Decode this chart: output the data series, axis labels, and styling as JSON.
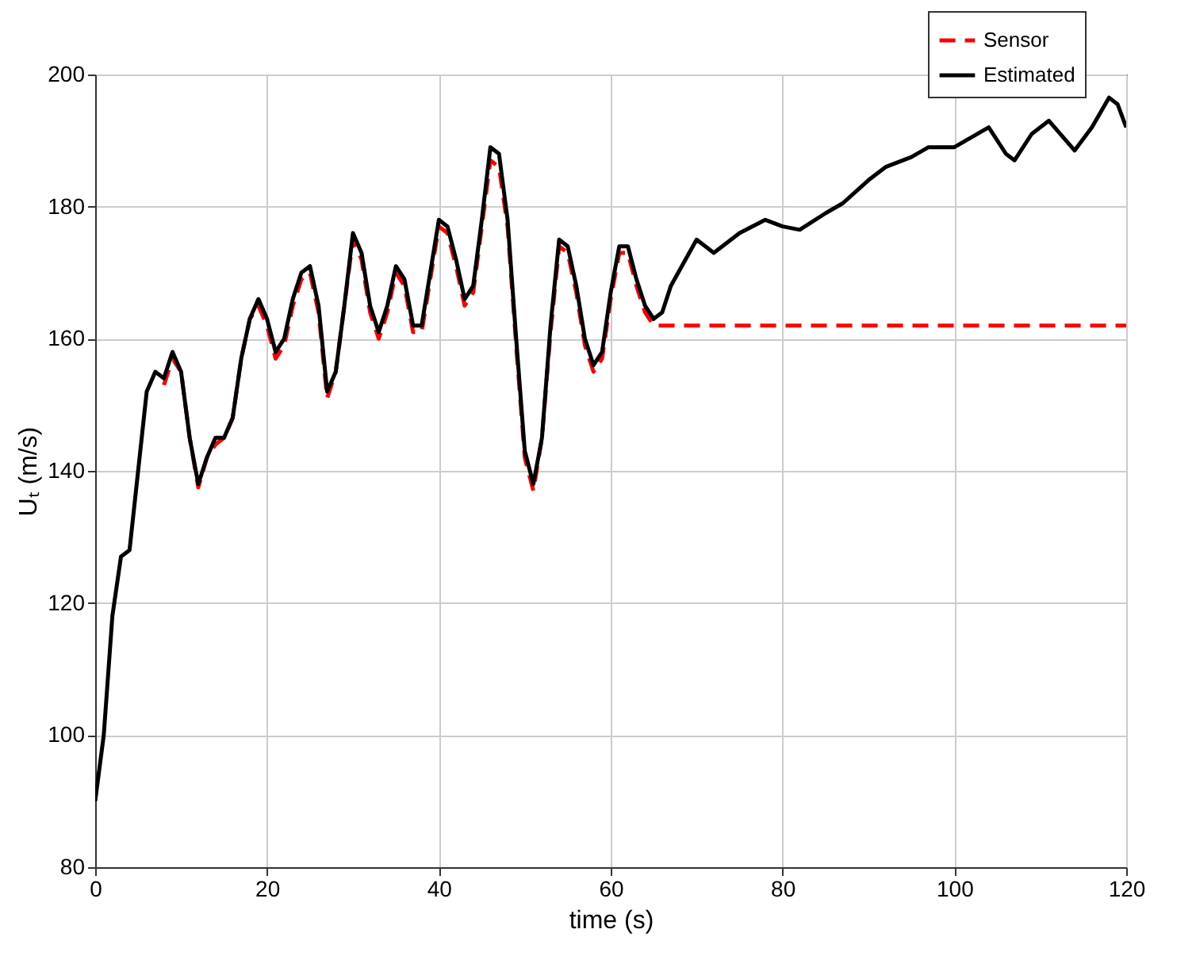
{
  "chart_data": {
    "type": "line",
    "xlabel": "time (s)",
    "ylabel": "Uₜ (m/s)",
    "xlim": [
      0,
      120
    ],
    "ylim": [
      80,
      200
    ],
    "xticks": [
      0,
      20,
      40,
      60,
      80,
      100,
      120
    ],
    "yticks": [
      80,
      100,
      120,
      140,
      160,
      180,
      200
    ],
    "grid": true,
    "legend": "top right",
    "series": [
      {
        "name": "Sensor",
        "color": "#ff0000",
        "line_style": "dashed",
        "x": [
          8,
          9,
          10,
          11,
          12,
          13,
          14,
          15,
          16,
          17,
          18,
          19,
          20,
          21,
          22,
          23,
          24,
          25,
          26,
          27,
          28,
          29,
          30,
          31,
          32,
          33,
          34,
          35,
          36,
          37,
          38,
          39,
          40,
          41,
          42,
          43,
          44,
          45,
          46,
          47,
          48,
          49,
          50,
          51,
          52,
          53,
          54,
          55,
          56,
          57,
          58,
          59,
          60,
          61,
          62,
          63,
          64,
          65,
          66,
          120
        ],
        "values": [
          153,
          157,
          155,
          145,
          137.5,
          142,
          144,
          145,
          148,
          157,
          163,
          165,
          162,
          157,
          159,
          165,
          169,
          170,
          164,
          151,
          155,
          165,
          175,
          172,
          164,
          160,
          164,
          170,
          168,
          161,
          161,
          169,
          177,
          176,
          171,
          165,
          167,
          177,
          187,
          186,
          177,
          159,
          142,
          137,
          145,
          161,
          174,
          173,
          167,
          159,
          155,
          157,
          166,
          173,
          173,
          168,
          164,
          162,
          162,
          162
        ]
      },
      {
        "name": "Estimated",
        "color": "#000000",
        "line_style": "solid",
        "x": [
          0,
          1,
          2,
          3,
          4,
          5,
          6,
          7,
          8,
          9,
          10,
          11,
          12,
          13,
          14,
          15,
          16,
          17,
          18,
          19,
          20,
          21,
          22,
          23,
          24,
          25,
          26,
          27,
          28,
          29,
          30,
          31,
          32,
          33,
          34,
          35,
          36,
          37,
          38,
          39,
          40,
          41,
          42,
          43,
          44,
          45,
          46,
          47,
          48,
          49,
          50,
          51,
          52,
          53,
          54,
          55,
          56,
          57,
          58,
          59,
          60,
          61,
          62,
          63,
          64,
          65,
          66,
          67,
          70,
          72,
          75,
          78,
          80,
          82,
          85,
          87,
          90,
          92,
          95,
          97,
          100,
          102,
          104,
          106,
          107,
          109,
          111,
          113,
          114,
          116,
          118,
          119,
          120
        ],
        "values": [
          90,
          100,
          118,
          127,
          128,
          140,
          152,
          155,
          154,
          158,
          155,
          145,
          138,
          142,
          145,
          145,
          148,
          157,
          163,
          166,
          163,
          158,
          160,
          166,
          170,
          171,
          165,
          152,
          155,
          165,
          176,
          173,
          165,
          161,
          165,
          171,
          169,
          162,
          162,
          170,
          178,
          177,
          172,
          166,
          168,
          178,
          189,
          188,
          178,
          160,
          143,
          138,
          145,
          162,
          175,
          174,
          168,
          160,
          156,
          158,
          167,
          174,
          174,
          169,
          165,
          163,
          164,
          168,
          175,
          173,
          176,
          178,
          177,
          176.5,
          179,
          180.5,
          184,
          186,
          187.5,
          189,
          189,
          190.5,
          192,
          188,
          187,
          191,
          193,
          190,
          188.5,
          192,
          196.5,
          195.5,
          192
        ]
      }
    ]
  }
}
